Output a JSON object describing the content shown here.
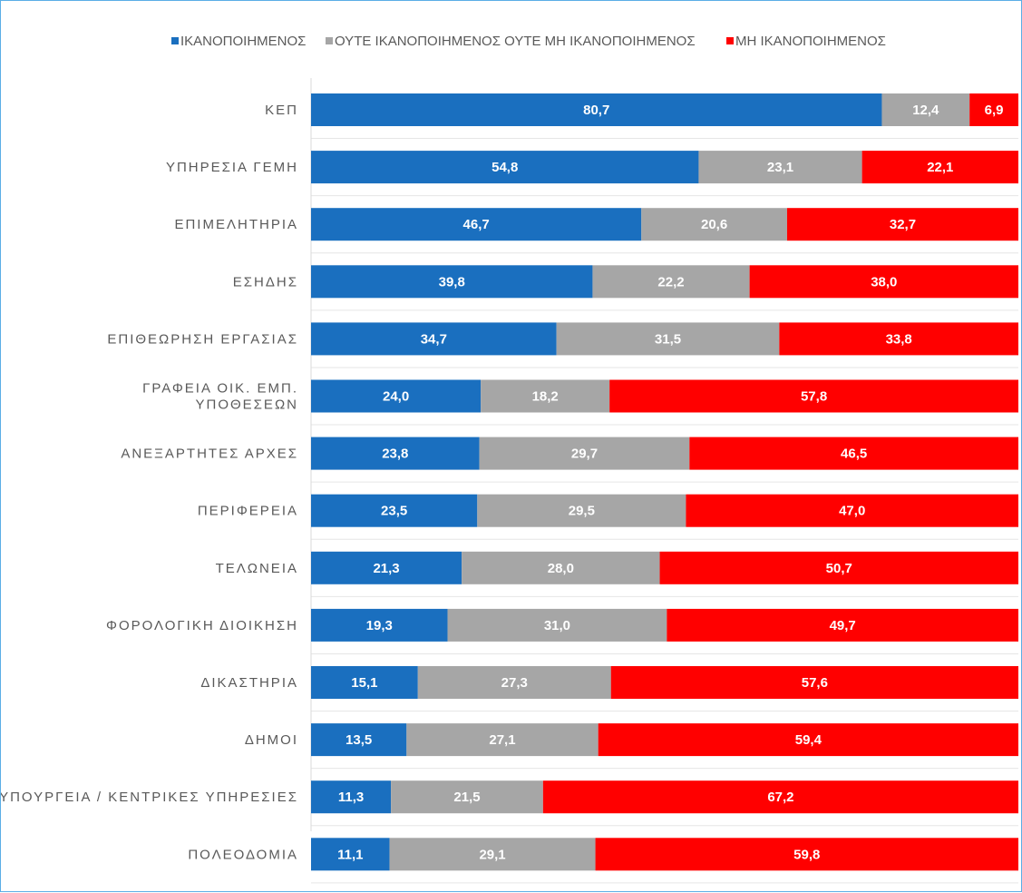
{
  "chart_data": {
    "type": "bar",
    "orientation": "horizontal",
    "stacked": true,
    "percent_stacked": true,
    "legend_position": "top",
    "grid": true,
    "xlim": [
      0,
      100
    ],
    "categories": [
      "ΚΕΠ",
      "ΥΠΗΡΕΣΙΑ ΓΕΜΗ",
      "ΕΠΙΜΕΛΗΤΗΡΙΑ",
      "ΕΣΗΔΗΣ",
      "ΕΠΙΘΕΩΡΗΣΗ ΕΡΓΑΣΙΑΣ",
      [
        "ΓΡΑΦΕΙΑ ΟΙΚ. ΕΜΠ.",
        "ΥΠΟΘΕΣΕΩΝ"
      ],
      "ΑΝΕΞΑΡΤΗΤΕΣ ΑΡΧΕΣ",
      "ΠΕΡΙΦΕΡΕΙΑ",
      "ΤΕΛΩΝΕΙΑ",
      "ΦΟΡΟΛΟΓΙΚΗ ΔΙΟΙΚΗΣΗ",
      "ΔΙΚΑΣΤΗΡΙΑ",
      "ΔΗΜΟΙ",
      "ΥΠΟΥΡΓΕΙΑ / ΚΕΝΤΡΙΚΕΣ ΥΠΗΡΕΣΙΕΣ",
      "ΠΟΛΕΟΔΟΜΙΑ"
    ],
    "series": [
      {
        "name": "ΙΚΑΝΟΠΟΙΗΜΕΝΟΣ",
        "color": "#1a6fbf",
        "values": [
          80.7,
          54.8,
          46.7,
          39.8,
          34.7,
          24.0,
          23.8,
          23.5,
          21.3,
          19.3,
          15.1,
          13.5,
          11.3,
          11.1
        ],
        "labels": [
          "80,7",
          "54,8",
          "46,7",
          "39,8",
          "34,7",
          "24,0",
          "23,8",
          "23,5",
          "21,3",
          "19,3",
          "15,1",
          "13,5",
          "11,3",
          "11,1"
        ]
      },
      {
        "name": "ΟΥΤΕ ΙΚΑΝΟΠΟΙΗΜΕΝΟΣ  ΟΥΤΕ ΜΗ ΙΚΑΝΟΠΟΙΗΜΕΝΟΣ",
        "color": "#a6a6a6",
        "values": [
          12.4,
          23.1,
          20.6,
          22.2,
          31.5,
          18.2,
          29.7,
          29.5,
          28.0,
          31.0,
          27.3,
          27.1,
          21.5,
          29.1
        ],
        "labels": [
          "12,4",
          "23,1",
          "20,6",
          "22,2",
          "31,5",
          "18,2",
          "29,7",
          "29,5",
          "28,0",
          "31,0",
          "27,3",
          "27,1",
          "21,5",
          "29,1"
        ]
      },
      {
        "name": "ΜΗ ΙΚΑΝΟΠΟΙΗΜΕΝΟΣ",
        "color": "#ff0000",
        "values": [
          6.9,
          22.1,
          32.7,
          38.0,
          33.8,
          57.8,
          46.5,
          47.0,
          50.7,
          49.7,
          57.6,
          59.4,
          67.2,
          59.8
        ],
        "labels": [
          "6,9",
          "22,1",
          "32,7",
          "38,0",
          "33,8",
          "57,8",
          "46,5",
          "47,0",
          "50,7",
          "49,7",
          "57,6",
          "59,4",
          "67,2",
          "59,8"
        ]
      }
    ]
  }
}
